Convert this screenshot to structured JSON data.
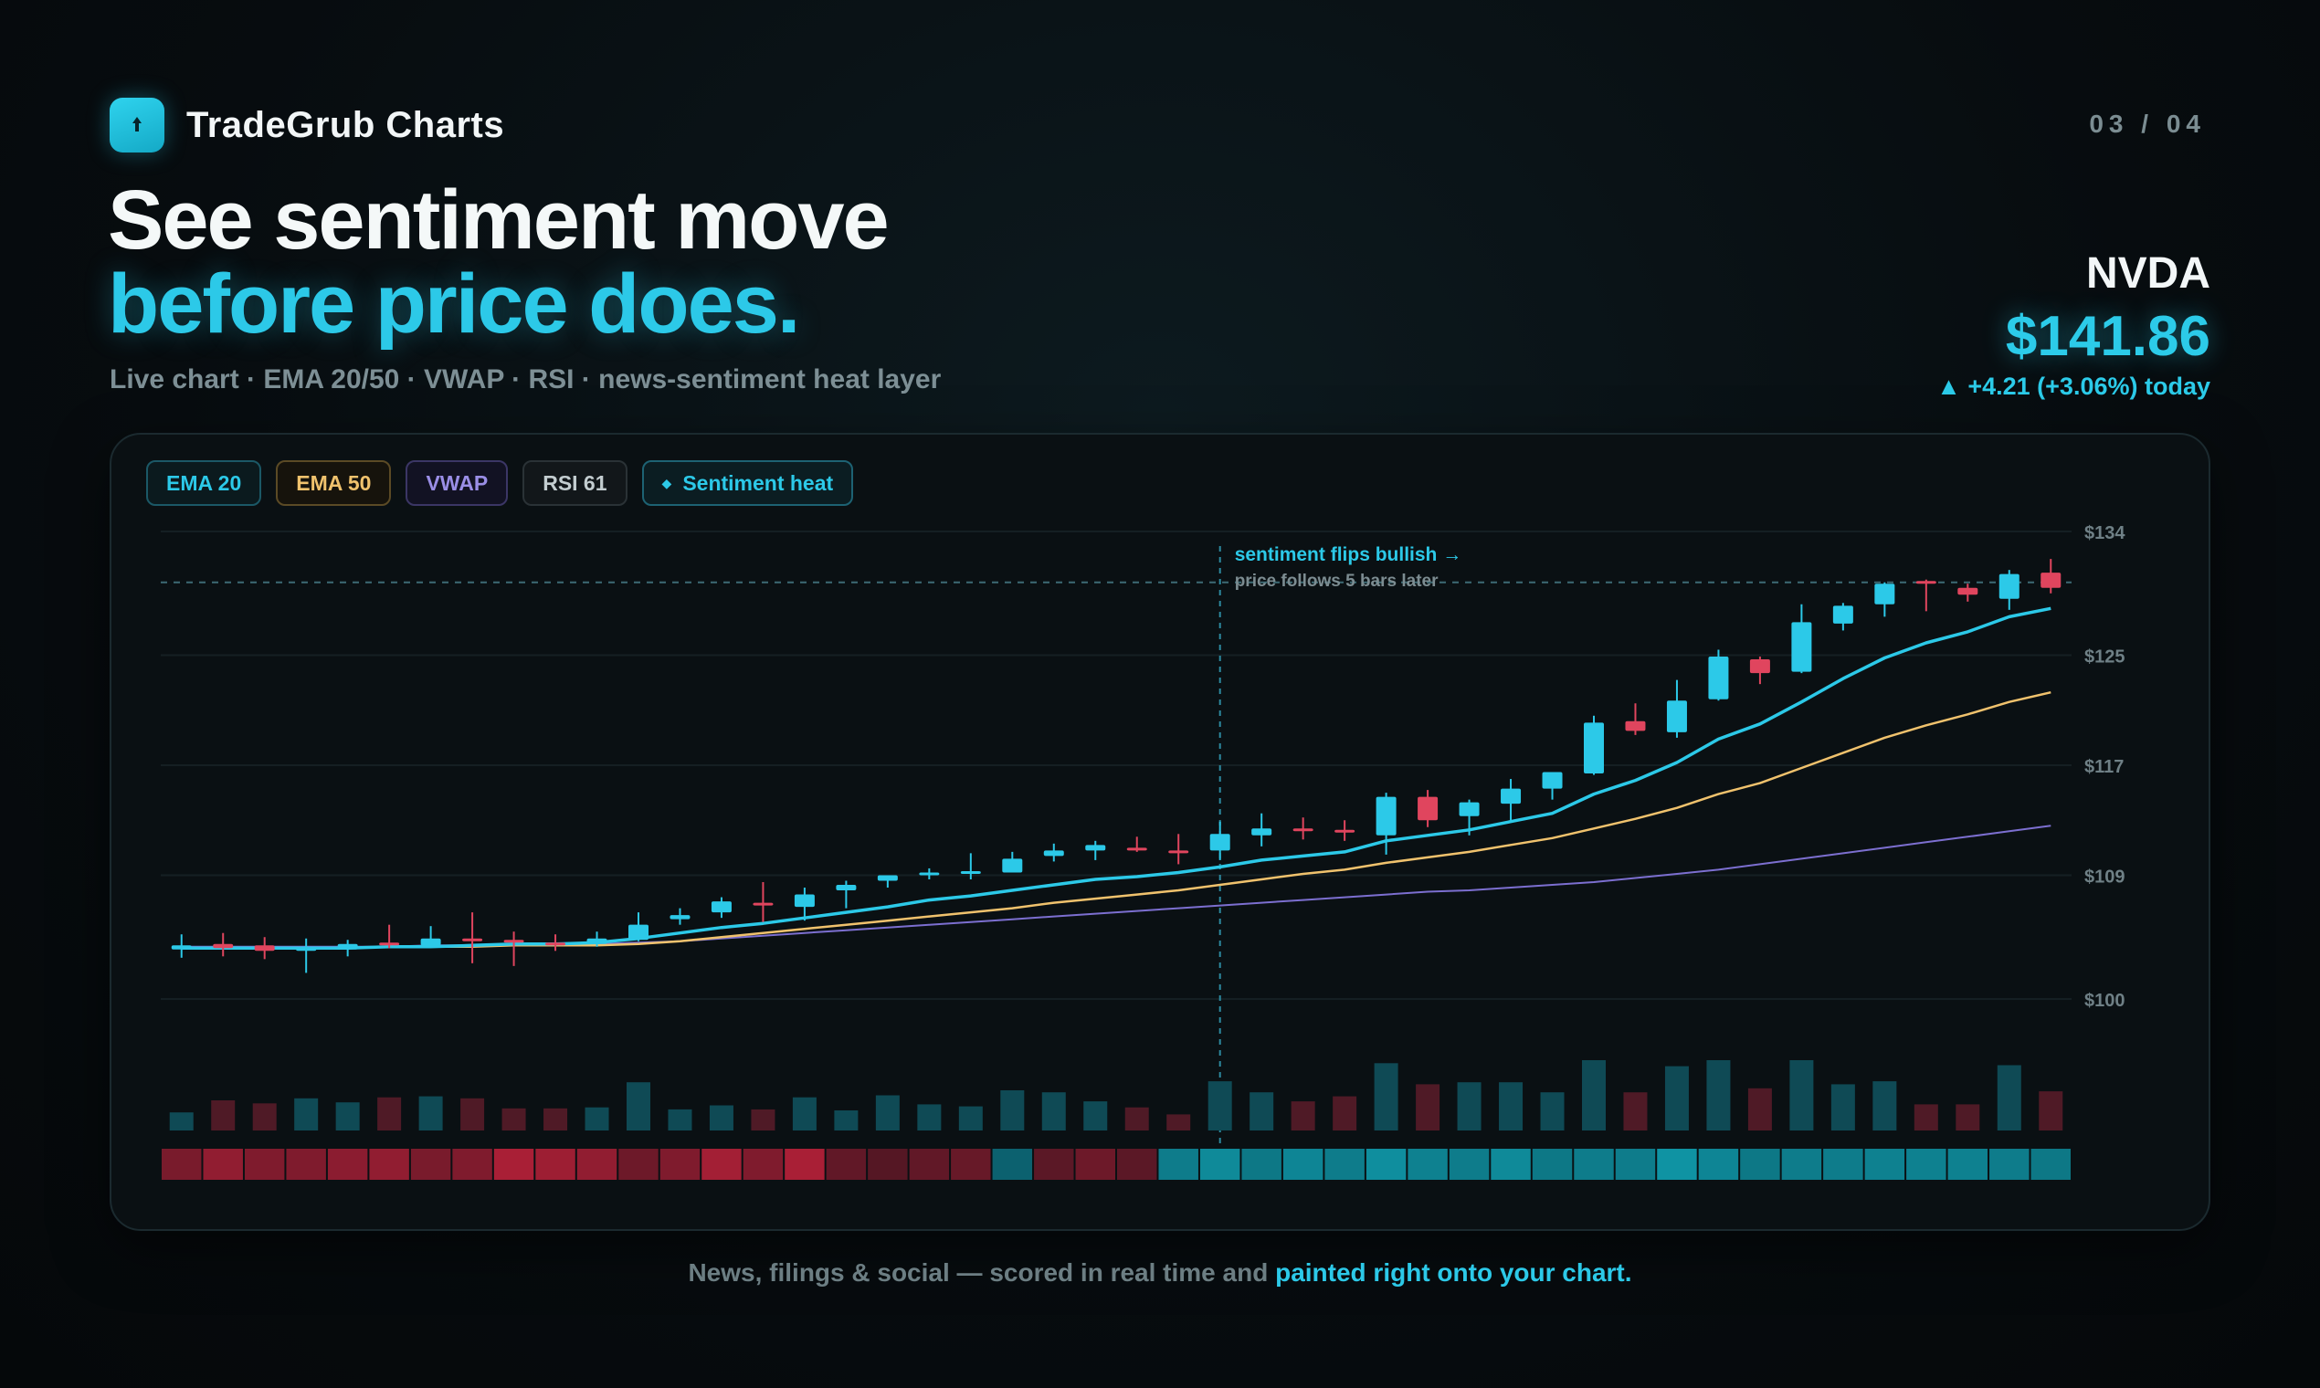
{
  "brand": {
    "name": "TradeGrub Charts",
    "icon": "pin-icon"
  },
  "page_counter": "03 / 04",
  "headline": {
    "line1": "See sentiment move",
    "line2": "before price does."
  },
  "subtitle": "Live chart · EMA 20/50 · VWAP · RSI · news-sentiment heat layer",
  "ticker": {
    "symbol": "NVDA",
    "price": "$141.86",
    "change": "▲ +4.21 (+3.06%) today"
  },
  "chips": [
    {
      "label": "EMA 20"
    },
    {
      "label": "EMA 50"
    },
    {
      "label": "VWAP"
    },
    {
      "label": "RSI 61"
    },
    {
      "label": "Sentiment heat",
      "icon": "diamond-icon"
    }
  ],
  "footer": {
    "text": "News, filings & social — scored in real time and ",
    "accent": "painted right onto your chart."
  },
  "colors": {
    "bull": "#2cc9e8",
    "bear": "#e0455e",
    "ema20": "#2cc9e8",
    "ema50": "#f0c26d",
    "vwap": "#7c6fd0",
    "background": "#0a1013"
  },
  "chart_data": {
    "type": "candlestick",
    "symbol": "NVDA",
    "y_ticks": [
      "$134",
      "$125",
      "$117",
      "$109",
      "$100"
    ],
    "ylim": [
      100,
      134
    ],
    "grid": true,
    "annotation": {
      "label": "sentiment flips bullish →",
      "sublabel": "price follows 5 bars later",
      "bar_index": 25,
      "level": 130.3
    },
    "candles": [
      {
        "o": 103.6,
        "h": 104.7,
        "l": 103.0,
        "c": 103.9
      },
      {
        "o": 104.0,
        "h": 104.8,
        "l": 103.1,
        "c": 103.7
      },
      {
        "o": 103.9,
        "h": 104.5,
        "l": 102.9,
        "c": 103.5
      },
      {
        "o": 103.5,
        "h": 104.4,
        "l": 101.9,
        "c": 103.7
      },
      {
        "o": 103.6,
        "h": 104.3,
        "l": 103.1,
        "c": 104.0
      },
      {
        "o": 104.1,
        "h": 105.4,
        "l": 103.7,
        "c": 104.0
      },
      {
        "o": 103.9,
        "h": 105.3,
        "l": 103.9,
        "c": 104.4
      },
      {
        "o": 104.4,
        "h": 106.3,
        "l": 102.6,
        "c": 104.2
      },
      {
        "o": 104.3,
        "h": 104.9,
        "l": 102.4,
        "c": 104.1
      },
      {
        "o": 104.1,
        "h": 104.7,
        "l": 103.5,
        "c": 104.0
      },
      {
        "o": 104.0,
        "h": 104.9,
        "l": 103.8,
        "c": 104.4
      },
      {
        "o": 104.3,
        "h": 106.3,
        "l": 104.2,
        "c": 105.4
      },
      {
        "o": 105.8,
        "h": 106.6,
        "l": 105.4,
        "c": 106.1
      },
      {
        "o": 106.3,
        "h": 107.4,
        "l": 105.9,
        "c": 107.1
      },
      {
        "o": 107.0,
        "h": 108.5,
        "l": 105.6,
        "c": 106.8
      },
      {
        "o": 106.7,
        "h": 108.1,
        "l": 105.7,
        "c": 107.6
      },
      {
        "o": 107.9,
        "h": 108.6,
        "l": 106.6,
        "c": 108.3
      },
      {
        "o": 108.6,
        "h": 108.9,
        "l": 108.1,
        "c": 109.0
      },
      {
        "o": 109.0,
        "h": 109.5,
        "l": 108.7,
        "c": 109.2
      },
      {
        "o": 109.3,
        "h": 110.6,
        "l": 108.7,
        "c": 109.3
      },
      {
        "o": 109.2,
        "h": 110.7,
        "l": 109.2,
        "c": 110.2
      },
      {
        "o": 110.4,
        "h": 111.3,
        "l": 110.0,
        "c": 110.8
      },
      {
        "o": 110.8,
        "h": 111.5,
        "l": 110.1,
        "c": 111.2
      },
      {
        "o": 111.0,
        "h": 111.8,
        "l": 110.7,
        "c": 110.8
      },
      {
        "o": 110.8,
        "h": 112.0,
        "l": 109.8,
        "c": 110.7
      },
      {
        "o": 110.8,
        "h": 112.9,
        "l": 110.1,
        "c": 112.0
      },
      {
        "o": 111.9,
        "h": 113.5,
        "l": 111.1,
        "c": 112.4
      },
      {
        "o": 112.4,
        "h": 113.2,
        "l": 111.6,
        "c": 112.3
      },
      {
        "o": 112.3,
        "h": 113.0,
        "l": 111.5,
        "c": 112.1
      },
      {
        "o": 111.9,
        "h": 115.0,
        "l": 110.5,
        "c": 114.7
      },
      {
        "o": 114.7,
        "h": 115.2,
        "l": 112.5,
        "c": 113.0
      },
      {
        "o": 113.3,
        "h": 114.5,
        "l": 111.9,
        "c": 114.3
      },
      {
        "o": 114.2,
        "h": 116.0,
        "l": 113.0,
        "c": 115.3
      },
      {
        "o": 115.3,
        "h": 116.5,
        "l": 114.5,
        "c": 116.5
      },
      {
        "o": 116.4,
        "h": 120.6,
        "l": 116.3,
        "c": 120.1
      },
      {
        "o": 120.2,
        "h": 121.5,
        "l": 119.2,
        "c": 119.5
      },
      {
        "o": 119.4,
        "h": 123.2,
        "l": 119.0,
        "c": 121.7
      },
      {
        "o": 121.8,
        "h": 125.4,
        "l": 121.7,
        "c": 124.9
      },
      {
        "o": 124.7,
        "h": 124.9,
        "l": 122.9,
        "c": 123.7
      },
      {
        "o": 123.8,
        "h": 128.7,
        "l": 123.7,
        "c": 127.4
      },
      {
        "o": 127.3,
        "h": 128.8,
        "l": 126.8,
        "c": 128.6
      },
      {
        "o": 128.7,
        "h": 130.3,
        "l": 127.8,
        "c": 130.2
      },
      {
        "o": 130.4,
        "h": 130.5,
        "l": 128.2,
        "c": 130.2
      },
      {
        "o": 129.9,
        "h": 130.2,
        "l": 128.9,
        "c": 129.4
      },
      {
        "o": 129.1,
        "h": 131.2,
        "l": 128.3,
        "c": 130.9
      },
      {
        "o": 131.0,
        "h": 132.0,
        "l": 129.5,
        "c": 129.9
      }
    ],
    "series": [
      {
        "name": "EMA 20",
        "values": [
          103.7,
          103.7,
          103.7,
          103.7,
          103.7,
          103.8,
          103.8,
          103.9,
          104.0,
          104.0,
          104.1,
          104.4,
          104.8,
          105.2,
          105.5,
          105.9,
          106.3,
          106.7,
          107.2,
          107.5,
          107.9,
          108.3,
          108.7,
          108.9,
          109.2,
          109.6,
          110.1,
          110.4,
          110.7,
          111.5,
          111.9,
          112.3,
          112.9,
          113.5,
          114.9,
          115.9,
          117.2,
          118.9,
          120.0,
          121.6,
          123.3,
          124.8,
          125.9,
          126.7,
          127.8,
          128.4
        ]
      },
      {
        "name": "EMA 50",
        "values": [
          103.7,
          103.7,
          103.7,
          103.7,
          103.7,
          103.8,
          103.8,
          103.8,
          103.9,
          103.9,
          103.9,
          104.0,
          104.2,
          104.5,
          104.8,
          105.1,
          105.4,
          105.7,
          106.0,
          106.3,
          106.6,
          107.0,
          107.3,
          107.6,
          107.9,
          108.3,
          108.7,
          109.1,
          109.4,
          109.9,
          110.3,
          110.7,
          111.2,
          111.7,
          112.4,
          113.1,
          113.9,
          114.9,
          115.7,
          116.8,
          117.9,
          119.0,
          119.9,
          120.7,
          121.6,
          122.3
        ]
      },
      {
        "name": "VWAP",
        "values": [
          103.8,
          103.8,
          103.8,
          103.8,
          103.8,
          103.8,
          103.9,
          103.9,
          103.9,
          104.0,
          104.0,
          104.1,
          104.2,
          104.4,
          104.6,
          104.8,
          105.0,
          105.2,
          105.4,
          105.6,
          105.8,
          106.0,
          106.2,
          106.4,
          106.6,
          106.8,
          107.0,
          107.2,
          107.4,
          107.6,
          107.8,
          107.9,
          108.1,
          108.3,
          108.5,
          108.8,
          109.1,
          109.4,
          109.8,
          110.2,
          110.6,
          111.0,
          111.4,
          111.8,
          112.2,
          112.6
        ]
      }
    ],
    "volume": [
      18,
      30,
      27,
      32,
      28,
      33,
      34,
      32,
      22,
      22,
      23,
      48,
      21,
      25,
      21,
      33,
      20,
      35,
      26,
      24,
      40,
      38,
      29,
      23,
      16,
      49,
      38,
      29,
      34,
      67,
      46,
      48,
      48,
      38,
      70,
      38,
      64,
      70,
      42,
      70,
      46,
      49,
      26,
      26,
      65,
      39
    ],
    "sentiment": [
      -0.55,
      -0.75,
      -0.6,
      -0.6,
      -0.7,
      -0.75,
      -0.55,
      -0.6,
      -0.95,
      -0.85,
      -0.75,
      -0.45,
      -0.6,
      -0.9,
      -0.6,
      -0.95,
      -0.35,
      -0.25,
      -0.35,
      -0.4,
      0.3,
      -0.3,
      -0.45,
      -0.3,
      0.6,
      0.75,
      0.55,
      0.7,
      0.6,
      0.8,
      0.65,
      0.6,
      0.75,
      0.55,
      0.6,
      0.6,
      0.85,
      0.7,
      0.55,
      0.6,
      0.6,
      0.65,
      0.65,
      0.65,
      0.6,
      0.55
    ]
  }
}
